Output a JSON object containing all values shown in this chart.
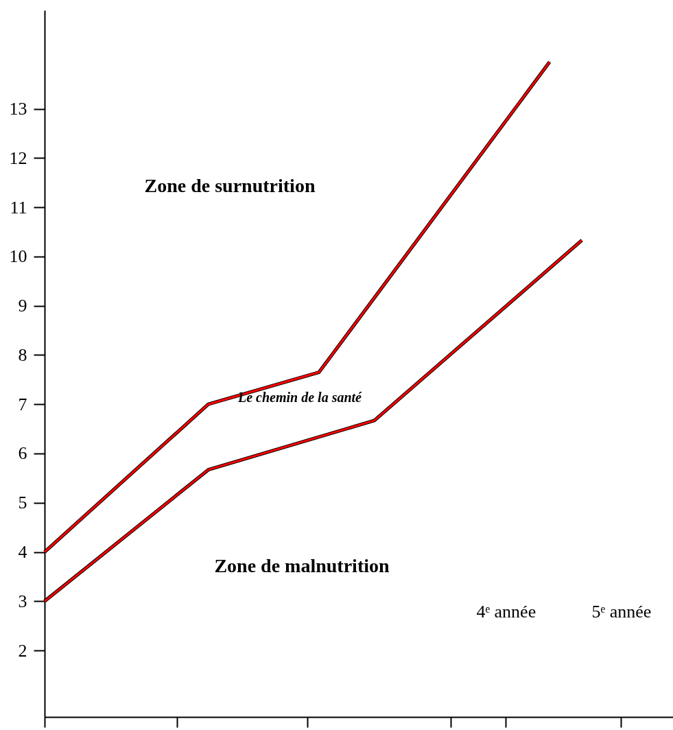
{
  "chart_data": {
    "type": "line",
    "series": [
      {
        "color": "#ff0000",
        "x": [
          0,
          1.42,
          2.38,
          4.38
        ],
        "values": [
          4,
          7,
          7.65,
          13.95
        ]
      },
      {
        "color": "#ff0000",
        "x": [
          0,
          1.42,
          2.86,
          4.66
        ],
        "values": [
          3,
          5.67,
          6.67,
          10.33
        ]
      }
    ],
    "xlim": [
      0,
      5.45
    ],
    "xticks": [
      {
        "value": 0,
        "label": null
      },
      {
        "value": 1.15,
        "label": null
      },
      {
        "value": 2.28,
        "label": null
      },
      {
        "value": 3.52,
        "label": null
      },
      {
        "value": 4,
        "label": "4ᵉ année"
      },
      {
        "value": 5,
        "label": "5ᵉ année"
      }
    ],
    "ylim": [
      0.65,
      15
    ],
    "yticks": [
      2,
      3,
      4,
      5,
      6,
      7,
      8,
      9,
      10,
      11,
      12,
      13
    ],
    "annotations": [
      "Zone de surnutrition",
      "Le chemin de la santé",
      "Zone de malnutrition"
    ],
    "marker": "none",
    "line_style": "solid"
  }
}
